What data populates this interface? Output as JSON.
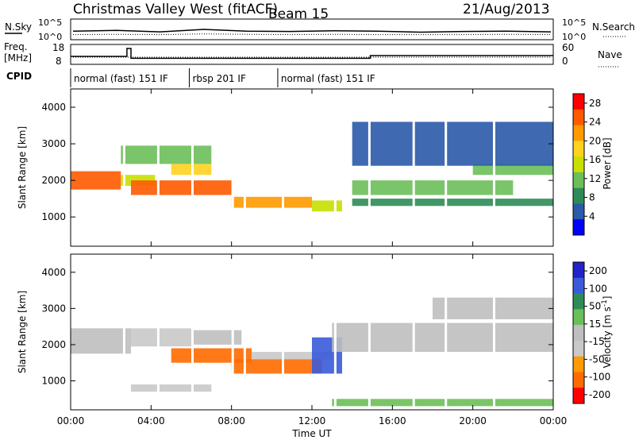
{
  "header": {
    "station": "Christmas Valley West (fitACF)",
    "beam": "Beam 15",
    "date": "21/Aug/2013"
  },
  "noise_panel": {
    "left_label": "N.Sky",
    "left_ticks": [
      "10^5",
      "10^0"
    ],
    "right_ticks": [
      "10^5",
      "10^0"
    ],
    "right_label": "N.Search"
  },
  "freq_panel": {
    "left_label_line1": "Freq.",
    "left_label_line2": "[MHz]",
    "left_ticks": [
      "18",
      "8"
    ],
    "right_ticks": [
      "60",
      "0"
    ],
    "right_label": "Nave"
  },
  "cpid": {
    "label": "CPID",
    "segments": [
      {
        "text": "normal (fast) 151 IF",
        "start_hour": 0.0
      },
      {
        "text": "rbsp 201 IF",
        "start_hour": 5.9
      },
      {
        "text": "normal (fast) 151 IF",
        "start_hour": 10.3
      }
    ]
  },
  "colors": {
    "power_scale": [
      "#0000ff",
      "#2a5aa8",
      "#2e8b57",
      "#6bbf59",
      "#c8e000",
      "#ffd21f",
      "#ff9a00",
      "#ff5a00",
      "#ff0000"
    ],
    "velocity_scale": [
      "#1f23c8",
      "#3a5bd9",
      "#2e8b57",
      "#6bbf59",
      "#bfbfbf",
      "#c9c9c9",
      "#ff9a00",
      "#ff6a00",
      "#ff0000"
    ]
  },
  "chart_data": [
    {
      "type": "heatmap",
      "name": "power",
      "xlabel": "",
      "ylabel": "Slant Range [km]",
      "x_range_hours": [
        0,
        24
      ],
      "ylim": [
        200,
        4500
      ],
      "y_ticks": [
        "1000",
        "2000",
        "3000",
        "4000"
      ],
      "colorbar": {
        "label": "Power [dB]",
        "ticks": [
          "4",
          "8",
          "12",
          "16",
          "20",
          "24",
          "28"
        ],
        "range": [
          0,
          30
        ]
      },
      "bands": [
        {
          "t0": 0.0,
          "t1": 2.5,
          "range_center_km": 2000,
          "range_width_km": 500,
          "power_db": 24
        },
        {
          "t0": 2.5,
          "t1": 4.2,
          "range_center_km": 2000,
          "range_width_km": 300,
          "power_db": 14
        },
        {
          "t0": 3.0,
          "t1": 8.0,
          "range_center_km": 1800,
          "range_width_km": 400,
          "power_db": 24
        },
        {
          "t0": 5.0,
          "t1": 7.0,
          "range_center_km": 2300,
          "range_width_km": 300,
          "power_db": 18
        },
        {
          "t0": 8.0,
          "t1": 12.0,
          "range_center_km": 1400,
          "range_width_km": 300,
          "power_db": 22
        },
        {
          "t0": 12.0,
          "t1": 13.5,
          "range_center_km": 1300,
          "range_width_km": 300,
          "power_db": 16
        },
        {
          "t0": 14.0,
          "t1": 22.0,
          "range_center_km": 1800,
          "range_width_km": 400,
          "power_db": 10
        },
        {
          "t0": 14.0,
          "t1": 24.0,
          "range_center_km": 1400,
          "range_width_km": 200,
          "power_db": 8
        },
        {
          "t0": 20.0,
          "t1": 24.0,
          "range_center_km": 2300,
          "range_width_km": 300,
          "power_db": 12
        },
        {
          "t0": 2.5,
          "t1": 7.0,
          "range_center_km": 2700,
          "range_width_km": 500,
          "power_db": 12
        },
        {
          "t0": 14.0,
          "t1": 24.0,
          "range_center_km": 3000,
          "range_width_km": 1200,
          "power_db": 6
        }
      ]
    },
    {
      "type": "heatmap",
      "name": "velocity",
      "xlabel": "Time UT",
      "ylabel": "Slant Range [km]",
      "x_range_hours": [
        0,
        24
      ],
      "x_ticks": [
        "00:00",
        "04:00",
        "08:00",
        "12:00",
        "16:00",
        "20:00",
        "00:00"
      ],
      "ylim": [
        200,
        4500
      ],
      "y_ticks": [
        "1000",
        "2000",
        "3000",
        "4000"
      ],
      "colorbar": {
        "label": "Velocity [m s^-1]",
        "ticks": [
          "200",
          "100",
          "50",
          "15",
          "-15",
          "-50",
          "-100",
          "-200"
        ],
        "range": [
          -250,
          250
        ]
      },
      "bands": [
        {
          "t0": 0.0,
          "t1": 3.0,
          "range_center_km": 2100,
          "range_width_km": 700,
          "velocity": 0
        },
        {
          "t0": 3.0,
          "t1": 6.0,
          "range_center_km": 2200,
          "range_width_km": 500,
          "velocity": -60
        },
        {
          "t0": 5.0,
          "t1": 9.0,
          "range_center_km": 1700,
          "range_width_km": 400,
          "velocity": -180
        },
        {
          "t0": 6.0,
          "t1": 8.5,
          "range_center_km": 2200,
          "range_width_km": 400,
          "velocity": 0
        },
        {
          "t0": 8.0,
          "t1": 12.5,
          "range_center_km": 1400,
          "range_width_km": 400,
          "velocity": -150
        },
        {
          "t0": 9.0,
          "t1": 13.0,
          "range_center_km": 1700,
          "range_width_km": 200,
          "velocity": -60
        },
        {
          "t0": 12.0,
          "t1": 13.5,
          "range_center_km": 1700,
          "range_width_km": 1000,
          "velocity": 150
        },
        {
          "t0": 3.0,
          "t1": 7.0,
          "range_center_km": 800,
          "range_width_km": 200,
          "velocity": -60
        },
        {
          "t0": 13.0,
          "t1": 24.0,
          "range_center_km": 2200,
          "range_width_km": 800,
          "velocity": 0
        },
        {
          "t0": 18.0,
          "t1": 24.0,
          "range_center_km": 3000,
          "range_width_km": 600,
          "velocity": 0
        },
        {
          "t0": 13.0,
          "t1": 24.0,
          "range_center_km": 400,
          "range_width_km": 200,
          "velocity": 40
        }
      ]
    }
  ],
  "noise_data": {
    "sky_log": [
      2.0,
      2.2,
      1.8,
      2.5,
      2.0,
      1.9,
      2.1,
      2.0,
      1.7,
      1.9,
      2.0,
      1.8
    ],
    "search_log": [
      1.0,
      1.1,
      1.0,
      1.2,
      1.1,
      1.0,
      1.1,
      1.0,
      1.0,
      1.0,
      1.1,
      1.0
    ]
  },
  "freq_data": {
    "segments_hours": [
      {
        "t0": 0.0,
        "t1": 2.8,
        "mhz": 12
      },
      {
        "t0": 2.8,
        "t1": 3.0,
        "mhz": 17
      },
      {
        "t0": 3.0,
        "t1": 14.9,
        "mhz": 10.8
      },
      {
        "t0": 14.9,
        "t1": 24.0,
        "mhz": 12.5
      }
    ]
  }
}
